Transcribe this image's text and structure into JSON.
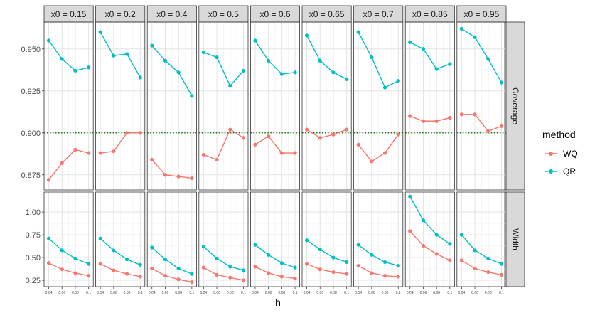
{
  "chart_data": {
    "type": "line",
    "xlabel": "h",
    "ylabel": "",
    "x": [
      0.04,
      0.06,
      0.08,
      0.1
    ],
    "x_tick_labels": [
      "0.04",
      "0.06",
      "0.08",
      "0.1"
    ],
    "xlim": [
      0.033,
      0.107
    ],
    "grid": true,
    "facet_columns": [
      "x0 = 0.15",
      "x0 = 0.2",
      "x0 = 0.4",
      "x0 = 0.5",
      "x0 = 0.6",
      "x0 = 0.65",
      "x0 = 0.7",
      "x0 = 0.85",
      "x0 = 0.95"
    ],
    "legend": {
      "title": "method",
      "placement": "right",
      "entries": [
        {
          "name": "WQ",
          "color": "#F8766D"
        },
        {
          "name": "QR",
          "color": "#00BFC4"
        }
      ]
    },
    "rows": [
      {
        "name": "Coverage",
        "ylim": [
          0.866,
          0.966
        ],
        "y_ticks": [
          0.875,
          0.9,
          0.925,
          0.95
        ],
        "y_tick_labels": [
          "0.875",
          "0.900",
          "0.925",
          "0.950"
        ],
        "reference_line": {
          "y": 0.9,
          "style": "dotted",
          "color": "#1a7a1a"
        },
        "panels": [
          {
            "WQ": [
              0.872,
              0.882,
              0.89,
              0.888
            ],
            "QR": [
              0.955,
              0.944,
              0.937,
              0.939
            ]
          },
          {
            "WQ": [
              0.888,
              0.889,
              0.9,
              0.9
            ],
            "QR": [
              0.96,
              0.946,
              0.947,
              0.933
            ]
          },
          {
            "WQ": [
              0.884,
              0.875,
              0.874,
              0.873
            ],
            "QR": [
              0.952,
              0.943,
              0.936,
              0.922
            ]
          },
          {
            "WQ": [
              0.887,
              0.884,
              0.902,
              0.897
            ],
            "QR": [
              0.948,
              0.945,
              0.928,
              0.937
            ]
          },
          {
            "WQ": [
              0.893,
              0.898,
              0.888,
              0.888
            ],
            "QR": [
              0.955,
              0.943,
              0.935,
              0.936
            ]
          },
          {
            "WQ": [
              0.902,
              0.897,
              0.899,
              0.902
            ],
            "QR": [
              0.958,
              0.943,
              0.936,
              0.932
            ]
          },
          {
            "WQ": [
              0.893,
              0.883,
              0.888,
              0.899
            ],
            "QR": [
              0.96,
              0.945,
              0.927,
              0.931
            ]
          },
          {
            "WQ": [
              0.91,
              0.907,
              0.907,
              0.909
            ],
            "QR": [
              0.954,
              0.95,
              0.938,
              0.941
            ]
          },
          {
            "WQ": [
              0.911,
              0.911,
              0.901,
              0.904
            ],
            "QR": [
              0.962,
              0.957,
              0.944,
              0.93
            ]
          }
        ]
      },
      {
        "name": "Width",
        "ylim": [
          0.18,
          1.22
        ],
        "y_ticks": [
          0.25,
          0.5,
          0.75,
          1.0
        ],
        "y_tick_labels": [
          "0.25",
          "0.50",
          "0.75",
          "1.00"
        ],
        "panels": [
          {
            "WQ": [
              0.44,
              0.37,
              0.33,
              0.3
            ],
            "QR": [
              0.71,
              0.58,
              0.49,
              0.43
            ]
          },
          {
            "WQ": [
              0.43,
              0.36,
              0.32,
              0.29
            ],
            "QR": [
              0.71,
              0.58,
              0.48,
              0.42
            ]
          },
          {
            "WQ": [
              0.38,
              0.3,
              0.26,
              0.23
            ],
            "QR": [
              0.61,
              0.48,
              0.38,
              0.32
            ]
          },
          {
            "WQ": [
              0.39,
              0.31,
              0.28,
              0.25
            ],
            "QR": [
              0.62,
              0.49,
              0.4,
              0.36
            ]
          },
          {
            "WQ": [
              0.4,
              0.33,
              0.29,
              0.27
            ],
            "QR": [
              0.64,
              0.53,
              0.44,
              0.39
            ]
          },
          {
            "WQ": [
              0.43,
              0.37,
              0.34,
              0.32
            ],
            "QR": [
              0.69,
              0.59,
              0.5,
              0.45
            ]
          },
          {
            "WQ": [
              0.41,
              0.33,
              0.3,
              0.29
            ],
            "QR": [
              0.64,
              0.53,
              0.45,
              0.41
            ]
          },
          {
            "WQ": [
              0.79,
              0.63,
              0.54,
              0.47
            ],
            "QR": [
              1.17,
              0.91,
              0.75,
              0.65
            ]
          },
          {
            "WQ": [
              0.47,
              0.38,
              0.34,
              0.31
            ],
            "QR": [
              0.75,
              0.58,
              0.49,
              0.43
            ]
          }
        ]
      }
    ]
  }
}
